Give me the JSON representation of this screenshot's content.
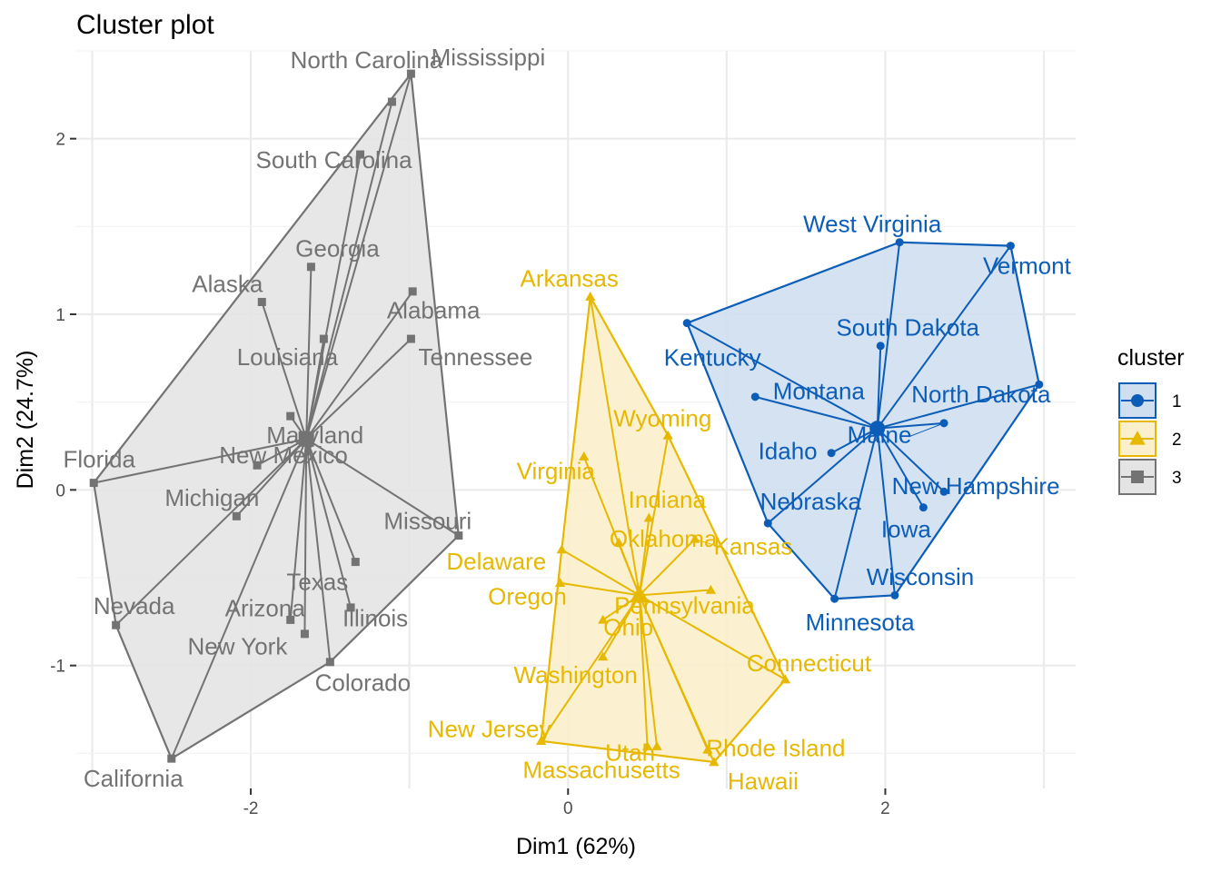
{
  "chart_data": {
    "type": "scatter",
    "title": "Cluster plot",
    "xlabel": "Dim1 (62%)",
    "ylabel": "Dim2 (24.7%)",
    "xlim": [
      -3.1,
      3.2
    ],
    "ylim": [
      -1.7,
      2.5
    ],
    "x_ticks": [
      -2,
      0,
      2
    ],
    "y_ticks": [
      -1,
      0,
      1,
      2
    ],
    "grid": true,
    "legend": {
      "title": "cluster",
      "placement": "right",
      "keys": [
        {
          "label": "1",
          "color": "#0C5DB8",
          "fill": "#CFDFF0",
          "shape": "circle"
        },
        {
          "label": "2",
          "color": "#E7B800",
          "fill": "#FBF0CB",
          "shape": "triangle"
        },
        {
          "label": "3",
          "color": "#737373",
          "fill": "#E4E4E4",
          "shape": "square"
        }
      ]
    },
    "series": [
      {
        "name": "1",
        "color": "#0C5DB8",
        "fill": "#CFDFF0",
        "shape": "circle",
        "center": [
          1.95,
          0.35
        ],
        "points": [
          {
            "label": "West Virginia",
            "x": 2.09,
            "y": 1.41
          },
          {
            "label": "Vermont",
            "x": 2.79,
            "y": 1.39
          },
          {
            "label": "Kentucky",
            "x": 0.75,
            "y": 0.95
          },
          {
            "label": "South Dakota",
            "x": 1.97,
            "y": 0.82
          },
          {
            "label": "Montana",
            "x": 1.18,
            "y": 0.53
          },
          {
            "label": "North Dakota",
            "x": 2.97,
            "y": 0.6
          },
          {
            "label": "Maine",
            "x": 2.37,
            "y": 0.38
          },
          {
            "label": "Idaho",
            "x": 1.66,
            "y": 0.21
          },
          {
            "label": "New Hampshire",
            "x": 2.37,
            "y": -0.01
          },
          {
            "label": "Nebraska",
            "x": 1.26,
            "y": -0.19
          },
          {
            "label": "Iowa",
            "x": 2.24,
            "y": -0.1
          },
          {
            "label": "Wisconsin",
            "x": 2.06,
            "y": -0.6
          },
          {
            "label": "Minnesota",
            "x": 1.68,
            "y": -0.62
          }
        ]
      },
      {
        "name": "2",
        "color": "#E7B800",
        "fill": "#FBF0CB",
        "shape": "triangle",
        "center": [
          0.45,
          -0.6
        ],
        "points": [
          {
            "label": "Arkansas",
            "x": 0.14,
            "y": 1.1
          },
          {
            "label": "Wyoming",
            "x": 0.63,
            "y": 0.31
          },
          {
            "label": "Virginia",
            "x": 0.1,
            "y": 0.19
          },
          {
            "label": "Indiana",
            "x": 0.51,
            "y": -0.16
          },
          {
            "label": "Kansas",
            "x": 0.8,
            "y": -0.28
          },
          {
            "label": "Delaware",
            "x": -0.04,
            "y": -0.34
          },
          {
            "label": "Oklahoma",
            "x": 0.32,
            "y": -0.3
          },
          {
            "label": "Oregon",
            "x": -0.05,
            "y": -0.53
          },
          {
            "label": "Pennsylvania",
            "x": 0.9,
            "y": -0.57
          },
          {
            "label": "Ohio",
            "x": 0.22,
            "y": -0.74
          },
          {
            "label": "Washington",
            "x": 0.22,
            "y": -0.95
          },
          {
            "label": "Connecticut",
            "x": 1.37,
            "y": -1.08
          },
          {
            "label": "New Jersey",
            "x": -0.17,
            "y": -1.43
          },
          {
            "label": "Utah",
            "x": 0.5,
            "y": -1.46
          },
          {
            "label": "Massachusetts",
            "x": 0.56,
            "y": -1.46
          },
          {
            "label": "Rhode Island",
            "x": 0.88,
            "y": -1.48
          },
          {
            "label": "Hawaii",
            "x": 0.92,
            "y": -1.55
          }
        ]
      },
      {
        "name": "3",
        "color": "#737373",
        "fill": "#E4E4E4",
        "shape": "square",
        "center": [
          -1.65,
          0.29
        ],
        "points": [
          {
            "label": "Mississippi",
            "x": -0.99,
            "y": 2.37
          },
          {
            "label": "North Carolina",
            "x": -1.11,
            "y": 2.21
          },
          {
            "label": "South Carolina",
            "x": -1.31,
            "y": 1.91
          },
          {
            "label": "Georgia",
            "x": -1.62,
            "y": 1.27
          },
          {
            "label": "Alaska",
            "x": -1.93,
            "y": 1.07
          },
          {
            "label": "Alabama",
            "x": -0.98,
            "y": 1.13
          },
          {
            "label": "Louisiana",
            "x": -1.54,
            "y": 0.86
          },
          {
            "label": "Tennessee",
            "x": -0.99,
            "y": 0.86
          },
          {
            "label": "Maryland",
            "x": -1.75,
            "y": 0.42
          },
          {
            "label": "New Mexico",
            "x": -1.96,
            "y": 0.14
          },
          {
            "label": "Florida",
            "x": -2.99,
            "y": 0.04
          },
          {
            "label": "Michigan",
            "x": -2.09,
            "y": -0.15
          },
          {
            "label": "Missouri",
            "x": -0.69,
            "y": -0.26
          },
          {
            "label": "Texas",
            "x": -1.34,
            "y": -0.41
          },
          {
            "label": "Illinois",
            "x": -1.37,
            "y": -0.67
          },
          {
            "label": "Nevada",
            "x": -2.85,
            "y": -0.77
          },
          {
            "label": "Arizona",
            "x": -1.75,
            "y": -0.74
          },
          {
            "label": "New York",
            "x": -1.66,
            "y": -0.82
          },
          {
            "label": "Colorado",
            "x": -1.5,
            "y": -0.98
          },
          {
            "label": "California",
            "x": -2.5,
            "y": -1.53
          }
        ]
      }
    ]
  }
}
